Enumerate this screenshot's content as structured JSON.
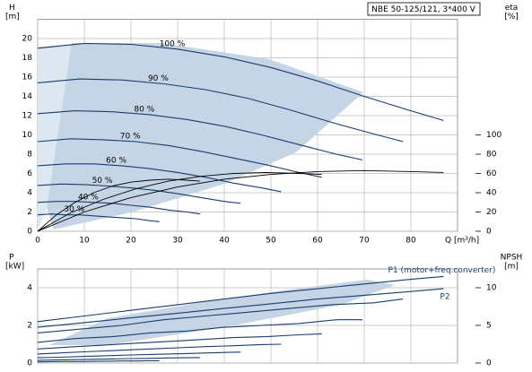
{
  "header": {
    "title": "NBE 50-125/121, 3*400 V"
  },
  "chart_data": [
    {
      "type": "line",
      "ylabel": "H",
      "yunit": "[m]",
      "y2label": "eta",
      "y2unit": "[%]",
      "xlabel": "Q [m³/h]",
      "xlim": [
        0,
        90
      ],
      "xticks": [
        0,
        10,
        20,
        30,
        40,
        50,
        60,
        70,
        80
      ],
      "ylim": [
        0,
        22
      ],
      "yticks": [
        0,
        2,
        4,
        6,
        8,
        10,
        12,
        14,
        16,
        18,
        20
      ],
      "y2lim": [
        0,
        220
      ],
      "y2ticks": [
        0,
        20,
        40,
        60,
        80,
        100
      ],
      "grid": true,
      "series": [
        {
          "name": "100 %",
          "color": "#1a3d6e",
          "x": [
            0,
            10,
            20,
            30,
            40,
            50,
            60,
            70,
            80,
            87
          ],
          "values": [
            19.0,
            19.5,
            19.4,
            18.9,
            18.1,
            17.0,
            15.6,
            14.0,
            12.5,
            11.5
          ]
        },
        {
          "name": "90 %",
          "color": "#1a3d6e",
          "x": [
            0,
            9,
            18,
            27,
            36,
            45,
            54,
            63,
            72,
            78.3
          ],
          "values": [
            15.4,
            15.8,
            15.7,
            15.3,
            14.7,
            13.8,
            12.6,
            11.3,
            10.1,
            9.3
          ]
        },
        {
          "name": "80 %",
          "color": "#1a3d6e",
          "x": [
            0,
            8,
            16,
            24,
            32,
            40,
            48,
            56,
            64,
            69.6
          ],
          "values": [
            12.2,
            12.5,
            12.4,
            12.1,
            11.6,
            10.9,
            10.0,
            9.0,
            8.0,
            7.4
          ]
        },
        {
          "name": "70 %",
          "color": "#1a3d6e",
          "x": [
            0,
            7,
            14,
            21,
            28,
            35,
            42,
            49,
            56,
            60.9
          ],
          "values": [
            9.3,
            9.6,
            9.5,
            9.3,
            8.9,
            8.3,
            7.6,
            6.9,
            6.1,
            5.6
          ]
        },
        {
          "name": "60 %",
          "color": "#1a3d6e",
          "x": [
            0,
            6,
            12,
            18,
            24,
            30,
            36,
            42,
            48,
            52.2
          ],
          "values": [
            6.8,
            7.0,
            7.0,
            6.8,
            6.5,
            6.1,
            5.6,
            5.0,
            4.5,
            4.1
          ]
        },
        {
          "name": "50 %",
          "color": "#1a3d6e",
          "x": [
            0,
            5,
            10,
            15,
            20,
            25,
            30,
            35,
            40,
            43.5
          ],
          "values": [
            4.75,
            4.9,
            4.85,
            4.7,
            4.5,
            4.25,
            3.9,
            3.5,
            3.1,
            2.9
          ]
        },
        {
          "name": "40 %",
          "color": "#1a3d6e",
          "x": [
            0,
            4,
            8,
            12,
            16,
            20,
            24,
            28,
            32,
            34.8
          ],
          "values": [
            3.0,
            3.1,
            3.1,
            3.0,
            2.9,
            2.7,
            2.5,
            2.2,
            2.0,
            1.8
          ]
        },
        {
          "name": "30 %",
          "color": "#1a3d6e",
          "x": [
            0,
            3,
            6,
            9,
            12,
            15,
            18,
            21,
            24,
            26.1
          ],
          "values": [
            1.7,
            1.8,
            1.7,
            1.7,
            1.6,
            1.5,
            1.4,
            1.3,
            1.1,
            1.0
          ]
        },
        {
          "axis": "y2",
          "color": "#000000",
          "x": [
            0,
            10,
            20,
            30,
            40,
            50,
            60,
            70,
            80,
            87
          ],
          "values": [
            0,
            20,
            35,
            46,
            54,
            59,
            62,
            63,
            62,
            61
          ]
        },
        {
          "axis": "y2",
          "color": "#000000",
          "x": [
            0,
            7,
            14,
            21,
            28,
            35,
            42,
            49,
            56,
            60.9
          ],
          "values": [
            0,
            19,
            33,
            44,
            52,
            57,
            60,
            61,
            60,
            59
          ]
        },
        {
          "axis": "y2",
          "color": "#000000",
          "x": [
            0,
            4,
            8,
            12,
            16,
            20,
            24,
            28,
            32,
            34.8
          ],
          "values": [
            0,
            17,
            30,
            40,
            47,
            51,
            53,
            54,
            53,
            52
          ]
        }
      ]
    },
    {
      "type": "line",
      "ylabel": "P",
      "yunit": "[kW]",
      "y2label": "NPSH",
      "y2unit": "[m]",
      "xlim": [
        0,
        90
      ],
      "xticks": [
        0,
        10,
        20,
        30,
        40,
        50,
        60,
        70,
        80
      ],
      "ylim": [
        0,
        5
      ],
      "yticks": [
        0,
        2,
        4
      ],
      "y2lim": [
        0,
        12.5
      ],
      "y2ticks": [
        0,
        5,
        10
      ],
      "grid": true,
      "series": [
        {
          "name": "P1 (motor+freq.converter)",
          "color": "#1a3d6e",
          "x": [
            0,
            10,
            20,
            30,
            40,
            50,
            60,
            70,
            80,
            87
          ],
          "values": [
            2.2,
            2.5,
            2.8,
            3.1,
            3.4,
            3.7,
            3.95,
            4.2,
            4.45,
            4.6
          ]
        },
        {
          "name": "P2",
          "color": "#1a3d6e",
          "x": [
            0,
            10,
            20,
            30,
            40,
            50,
            60,
            70,
            80,
            87
          ],
          "values": [
            1.9,
            2.15,
            2.4,
            2.65,
            2.9,
            3.15,
            3.4,
            3.6,
            3.8,
            3.95
          ]
        },
        {
          "color": "#1a3d6e",
          "x": [
            0,
            9,
            18,
            27,
            36,
            45,
            54,
            63,
            72,
            78.3
          ],
          "values": [
            1.6,
            1.8,
            2.0,
            2.3,
            2.5,
            2.7,
            2.9,
            3.1,
            3.2,
            3.4
          ]
        },
        {
          "color": "#1a3d6e",
          "x": [
            0,
            8,
            16,
            24,
            32,
            40,
            48,
            56,
            64,
            69.6
          ],
          "values": [
            1.1,
            1.3,
            1.4,
            1.6,
            1.7,
            1.9,
            2.0,
            2.1,
            2.3,
            2.3
          ]
        },
        {
          "color": "#1a3d6e",
          "x": [
            0,
            7,
            14,
            21,
            28,
            35,
            42,
            49,
            56,
            60.9
          ],
          "values": [
            0.75,
            0.85,
            0.95,
            1.05,
            1.15,
            1.25,
            1.35,
            1.4,
            1.5,
            1.55
          ]
        },
        {
          "color": "#1a3d6e",
          "x": [
            0,
            6,
            12,
            18,
            24,
            30,
            36,
            42,
            48,
            52.2
          ],
          "values": [
            0.48,
            0.55,
            0.62,
            0.68,
            0.75,
            0.81,
            0.87,
            0.92,
            0.98,
            1.0
          ]
        },
        {
          "color": "#1a3d6e",
          "x": [
            0,
            5,
            10,
            15,
            20,
            25,
            30,
            35,
            40,
            43.5
          ],
          "values": [
            0.28,
            0.31,
            0.35,
            0.39,
            0.43,
            0.46,
            0.49,
            0.53,
            0.56,
            0.58
          ]
        },
        {
          "color": "#1a3d6e",
          "x": [
            0,
            4,
            8,
            12,
            16,
            20,
            24,
            28,
            32,
            34.8
          ],
          "values": [
            0.14,
            0.16,
            0.18,
            0.2,
            0.22,
            0.24,
            0.25,
            0.27,
            0.28,
            0.29
          ]
        },
        {
          "color": "#1a3d6e",
          "x": [
            0,
            3,
            6,
            9,
            12,
            15,
            18,
            21,
            24,
            26.1
          ],
          "values": [
            0.06,
            0.07,
            0.08,
            0.08,
            0.09,
            0.1,
            0.11,
            0.11,
            0.12,
            0.12
          ]
        }
      ]
    }
  ]
}
